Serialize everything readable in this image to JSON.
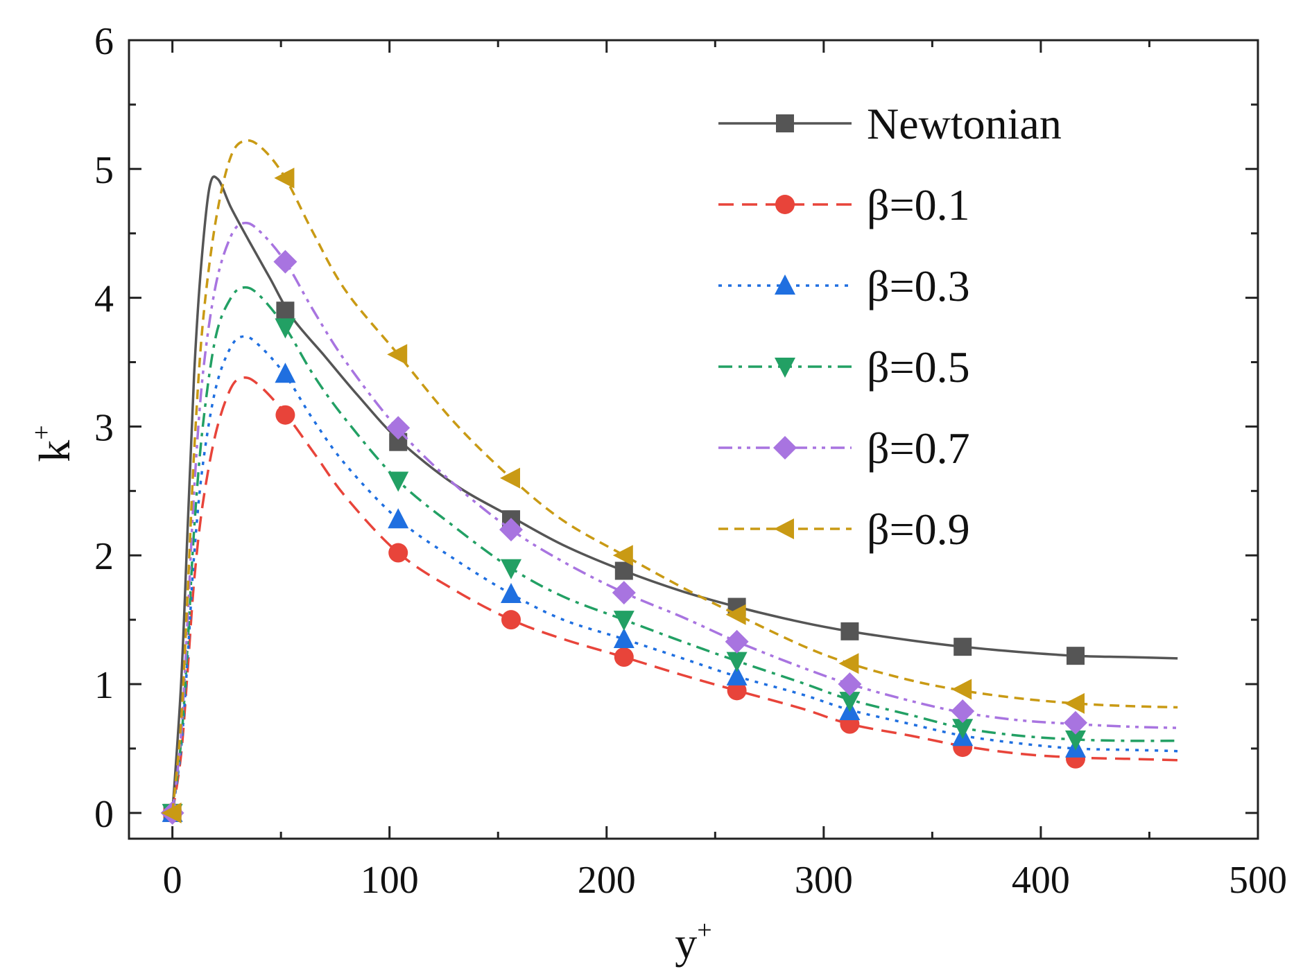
{
  "chart_data": {
    "type": "line",
    "title": "",
    "xlabel": {
      "base": "y",
      "sup": "+"
    },
    "ylabel": {
      "base": "k",
      "sup": "+"
    },
    "xlim": [
      -20,
      500
    ],
    "ylim": [
      -0.2,
      6
    ],
    "xticks": [
      0,
      100,
      200,
      300,
      400,
      500
    ],
    "yticks": [
      0,
      1,
      2,
      3,
      4,
      5,
      6
    ],
    "grid": false,
    "legend_position": "top-right",
    "series": [
      {
        "name": "Newtonian",
        "color": "#555555",
        "dash": "solid",
        "marker": "square",
        "curve": [
          [
            0,
            0
          ],
          [
            4,
            1.0
          ],
          [
            7,
            2.2
          ],
          [
            10,
            3.4
          ],
          [
            13,
            4.2
          ],
          [
            17,
            4.85
          ],
          [
            21,
            4.92
          ],
          [
            27,
            4.7
          ],
          [
            35,
            4.45
          ],
          [
            45,
            4.15
          ],
          [
            55,
            3.85
          ],
          [
            70,
            3.55
          ],
          [
            85,
            3.25
          ],
          [
            104,
            2.9
          ],
          [
            130,
            2.55
          ],
          [
            156,
            2.3
          ],
          [
            180,
            2.08
          ],
          [
            208,
            1.88
          ],
          [
            235,
            1.72
          ],
          [
            260,
            1.6
          ],
          [
            290,
            1.48
          ],
          [
            312,
            1.41
          ],
          [
            340,
            1.34
          ],
          [
            364,
            1.29
          ],
          [
            390,
            1.25
          ],
          [
            416,
            1.22
          ],
          [
            440,
            1.21
          ],
          [
            463,
            1.2
          ]
        ],
        "markers": [
          [
            0,
            0
          ],
          [
            52,
            3.9
          ],
          [
            104,
            2.88
          ],
          [
            156,
            2.28
          ],
          [
            208,
            1.88
          ],
          [
            260,
            1.6
          ],
          [
            312,
            1.41
          ],
          [
            364,
            1.29
          ],
          [
            416,
            1.22
          ]
        ]
      },
      {
        "name": "β=0.1",
        "color": "#e8443a",
        "dash": "dashed",
        "marker": "circle",
        "curve": [
          [
            0,
            0
          ],
          [
            4,
            0.45
          ],
          [
            7,
            1.1
          ],
          [
            10,
            1.8
          ],
          [
            14,
            2.4
          ],
          [
            20,
            2.95
          ],
          [
            27,
            3.3
          ],
          [
            33,
            3.38
          ],
          [
            40,
            3.32
          ],
          [
            52,
            3.1
          ],
          [
            65,
            2.8
          ],
          [
            80,
            2.45
          ],
          [
            104,
            2.02
          ],
          [
            130,
            1.73
          ],
          [
            156,
            1.5
          ],
          [
            180,
            1.35
          ],
          [
            208,
            1.21
          ],
          [
            235,
            1.07
          ],
          [
            260,
            0.95
          ],
          [
            290,
            0.81
          ],
          [
            312,
            0.69
          ],
          [
            340,
            0.6
          ],
          [
            364,
            0.52
          ],
          [
            390,
            0.46
          ],
          [
            416,
            0.43
          ],
          [
            440,
            0.42
          ],
          [
            463,
            0.41
          ]
        ],
        "markers": [
          [
            0,
            0
          ],
          [
            52,
            3.09
          ],
          [
            104,
            2.02
          ],
          [
            156,
            1.5
          ],
          [
            208,
            1.21
          ],
          [
            260,
            0.95
          ],
          [
            312,
            0.69
          ],
          [
            364,
            0.51
          ],
          [
            416,
            0.42
          ]
        ]
      },
      {
        "name": "β=0.3",
        "color": "#1f6fe0",
        "dash": "dotted",
        "marker": "triangle-up",
        "curve": [
          [
            0,
            0
          ],
          [
            4,
            0.5
          ],
          [
            7,
            1.2
          ],
          [
            10,
            2.0
          ],
          [
            14,
            2.7
          ],
          [
            20,
            3.3
          ],
          [
            27,
            3.62
          ],
          [
            33,
            3.7
          ],
          [
            40,
            3.63
          ],
          [
            52,
            3.4
          ],
          [
            65,
            3.05
          ],
          [
            80,
            2.7
          ],
          [
            104,
            2.28
          ],
          [
            130,
            1.97
          ],
          [
            156,
            1.7
          ],
          [
            180,
            1.5
          ],
          [
            208,
            1.35
          ],
          [
            235,
            1.2
          ],
          [
            260,
            1.06
          ],
          [
            290,
            0.92
          ],
          [
            312,
            0.8
          ],
          [
            340,
            0.69
          ],
          [
            364,
            0.6
          ],
          [
            390,
            0.54
          ],
          [
            416,
            0.5
          ],
          [
            440,
            0.49
          ],
          [
            463,
            0.48
          ]
        ],
        "markers": [
          [
            0,
            0
          ],
          [
            52,
            3.41
          ],
          [
            104,
            2.28
          ],
          [
            156,
            1.7
          ],
          [
            208,
            1.35
          ],
          [
            260,
            1.06
          ],
          [
            312,
            0.79
          ],
          [
            364,
            0.59
          ],
          [
            416,
            0.5
          ]
        ]
      },
      {
        "name": "β=0.5",
        "color": "#22a064",
        "dash": "dashdot",
        "marker": "triangle-down",
        "curve": [
          [
            0,
            0
          ],
          [
            4,
            0.55
          ],
          [
            7,
            1.3
          ],
          [
            10,
            2.2
          ],
          [
            14,
            3.0
          ],
          [
            20,
            3.7
          ],
          [
            27,
            4.0
          ],
          [
            33,
            4.08
          ],
          [
            40,
            4.02
          ],
          [
            52,
            3.77
          ],
          [
            65,
            3.4
          ],
          [
            80,
            3.05
          ],
          [
            104,
            2.58
          ],
          [
            130,
            2.22
          ],
          [
            156,
            1.9
          ],
          [
            180,
            1.68
          ],
          [
            208,
            1.5
          ],
          [
            235,
            1.33
          ],
          [
            260,
            1.18
          ],
          [
            290,
            1.01
          ],
          [
            312,
            0.88
          ],
          [
            340,
            0.76
          ],
          [
            364,
            0.66
          ],
          [
            390,
            0.6
          ],
          [
            416,
            0.57
          ],
          [
            440,
            0.56
          ],
          [
            463,
            0.56
          ]
        ],
        "markers": [
          [
            0,
            0
          ],
          [
            52,
            3.77
          ],
          [
            104,
            2.58
          ],
          [
            156,
            1.9
          ],
          [
            208,
            1.5
          ],
          [
            260,
            1.18
          ],
          [
            312,
            0.87
          ],
          [
            364,
            0.66
          ],
          [
            416,
            0.57
          ]
        ]
      },
      {
        "name": "β=0.7",
        "color": "#a874e0",
        "dash": "dashdotdot",
        "marker": "diamond",
        "curve": [
          [
            0,
            0
          ],
          [
            4,
            0.6
          ],
          [
            7,
            1.5
          ],
          [
            10,
            2.5
          ],
          [
            14,
            3.4
          ],
          [
            20,
            4.1
          ],
          [
            27,
            4.48
          ],
          [
            33,
            4.58
          ],
          [
            40,
            4.52
          ],
          [
            52,
            4.28
          ],
          [
            65,
            3.9
          ],
          [
            80,
            3.5
          ],
          [
            104,
            2.98
          ],
          [
            130,
            2.55
          ],
          [
            156,
            2.2
          ],
          [
            180,
            1.95
          ],
          [
            208,
            1.71
          ],
          [
            235,
            1.52
          ],
          [
            260,
            1.33
          ],
          [
            290,
            1.13
          ],
          [
            312,
            1.0
          ],
          [
            340,
            0.87
          ],
          [
            364,
            0.78
          ],
          [
            390,
            0.72
          ],
          [
            416,
            0.69
          ],
          [
            440,
            0.67
          ],
          [
            463,
            0.66
          ]
        ],
        "markers": [
          [
            0,
            0
          ],
          [
            52,
            4.28
          ],
          [
            104,
            2.99
          ],
          [
            156,
            2.2
          ],
          [
            208,
            1.71
          ],
          [
            260,
            1.33
          ],
          [
            312,
            1.0
          ],
          [
            364,
            0.79
          ],
          [
            416,
            0.7
          ]
        ]
      },
      {
        "name": "β=0.9",
        "color": "#c99a14",
        "dash": "dashed-short",
        "marker": "triangle-left",
        "curve": [
          [
            0,
            0
          ],
          [
            4,
            0.7
          ],
          [
            7,
            1.7
          ],
          [
            10,
            2.8
          ],
          [
            14,
            3.8
          ],
          [
            20,
            4.6
          ],
          [
            27,
            5.1
          ],
          [
            34,
            5.22
          ],
          [
            42,
            5.15
          ],
          [
            52,
            4.93
          ],
          [
            65,
            4.5
          ],
          [
            80,
            4.05
          ],
          [
            104,
            3.56
          ],
          [
            130,
            3.03
          ],
          [
            156,
            2.6
          ],
          [
            180,
            2.27
          ],
          [
            208,
            2.0
          ],
          [
            235,
            1.75
          ],
          [
            260,
            1.54
          ],
          [
            290,
            1.3
          ],
          [
            312,
            1.16
          ],
          [
            340,
            1.03
          ],
          [
            364,
            0.95
          ],
          [
            390,
            0.89
          ],
          [
            416,
            0.85
          ],
          [
            440,
            0.83
          ],
          [
            463,
            0.82
          ]
        ],
        "markers": [
          [
            0,
            0
          ],
          [
            52,
            4.93
          ],
          [
            104,
            3.56
          ],
          [
            156,
            2.6
          ],
          [
            208,
            2.0
          ],
          [
            260,
            1.54
          ],
          [
            312,
            1.16
          ],
          [
            364,
            0.96
          ],
          [
            416,
            0.85
          ]
        ]
      }
    ]
  }
}
